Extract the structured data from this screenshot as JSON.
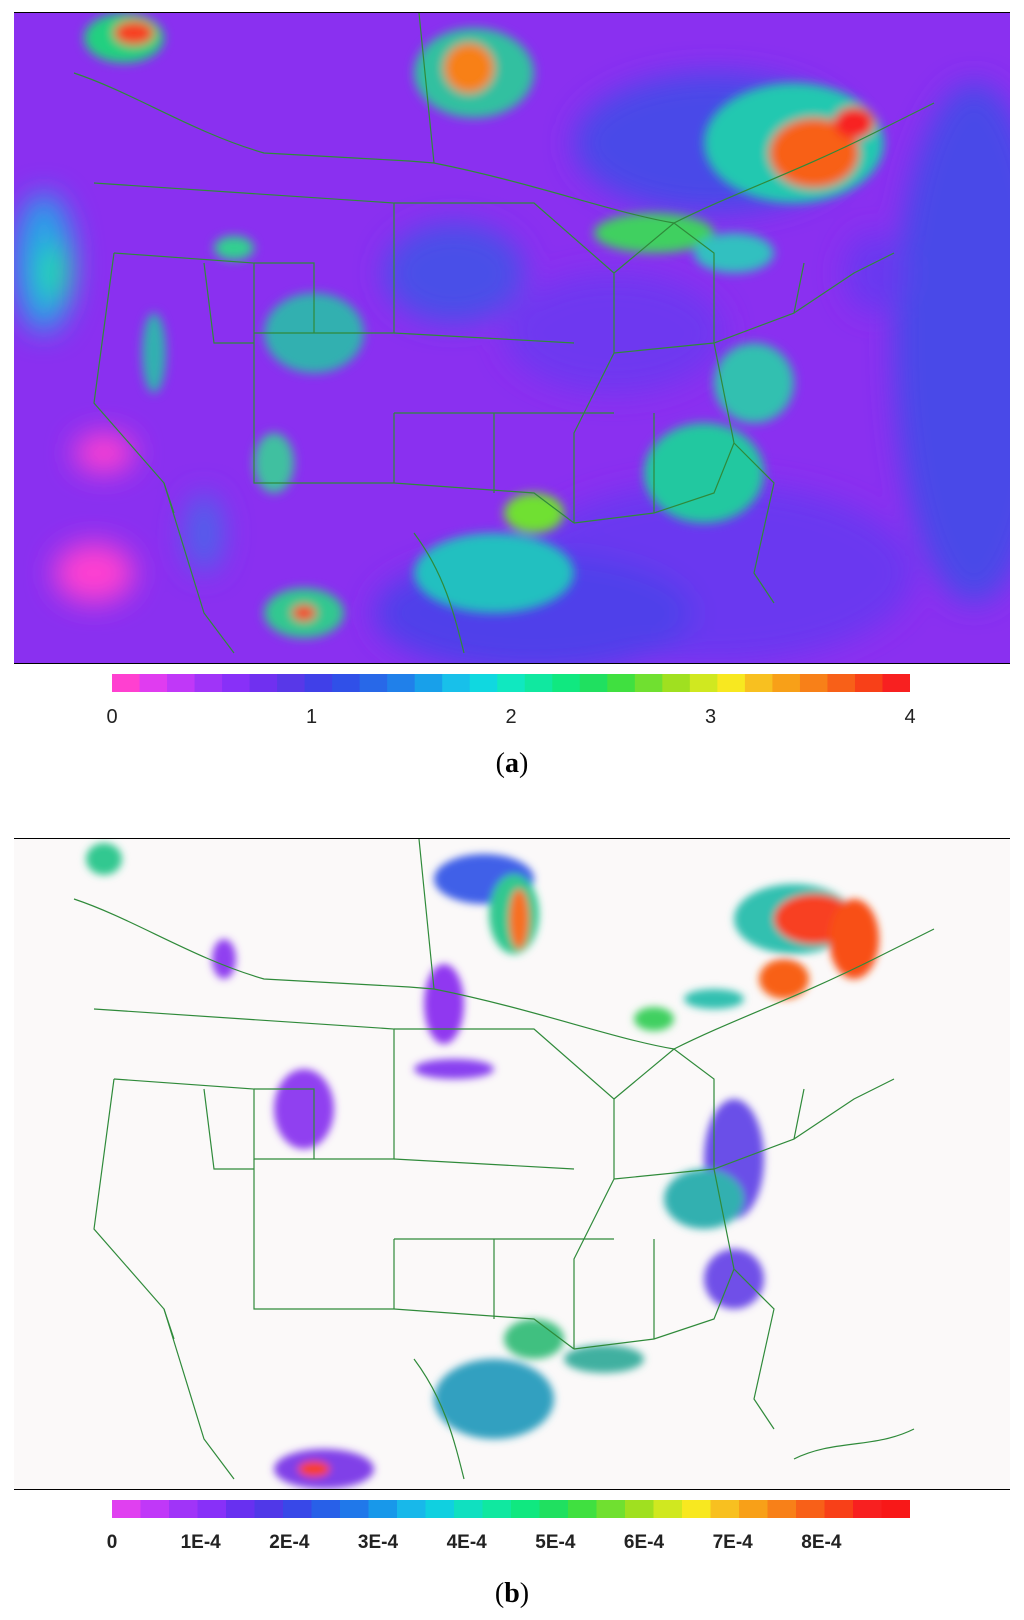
{
  "panels": [
    {
      "id": "a",
      "caption_letter": "a",
      "background": "#8a30f0",
      "outline_color": "#2f8a3a",
      "colorbar": {
        "colors": [
          "#ff40d0",
          "#e03cf0",
          "#c038f8",
          "#a034f8",
          "#8830f8",
          "#7030f0",
          "#5838e8",
          "#4040e8",
          "#3050e8",
          "#2868e8",
          "#2080ea",
          "#18a0ea",
          "#18c0ea",
          "#10d8e0",
          "#10e8c0",
          "#10e8a0",
          "#10e880",
          "#20e060",
          "#40e040",
          "#70e030",
          "#a0e020",
          "#d0e820",
          "#f8e820",
          "#f8c020",
          "#f8a018",
          "#f88018",
          "#f86018",
          "#f84018",
          "#f82020"
        ],
        "tick_labels": [
          "0",
          "1",
          "2",
          "3",
          "4"
        ],
        "tick_values": [
          0,
          1,
          2,
          3,
          4
        ],
        "range": [
          0,
          4
        ]
      }
    },
    {
      "id": "b",
      "caption_letter": "b",
      "background": "#fbf9f9",
      "outline_color": "#2f8a3a",
      "colorbar": {
        "colors": [
          "#e040f0",
          "#c038f8",
          "#a034f8",
          "#8830f8",
          "#6830f0",
          "#5038e8",
          "#3848e8",
          "#2860e8",
          "#2078ea",
          "#1898ea",
          "#18b8ea",
          "#10d0e0",
          "#10e0c0",
          "#10e8a0",
          "#10e880",
          "#20e060",
          "#40e040",
          "#70e030",
          "#a0e020",
          "#d0e820",
          "#f8e820",
          "#f8c020",
          "#f8a018",
          "#f88018",
          "#f86018",
          "#f84018",
          "#f82020",
          "#f81818"
        ],
        "tick_labels": [
          "0",
          "1E-4",
          "2E-4",
          "3E-4",
          "4E-4",
          "5E-4",
          "6E-4",
          "7E-4",
          "8E-4"
        ],
        "tick_values": [
          0,
          0.0001,
          0.0002,
          0.0003,
          0.0004,
          0.0005,
          0.0006,
          0.0007,
          0.0008
        ],
        "range": [
          0,
          0.0009
        ]
      }
    }
  ]
}
